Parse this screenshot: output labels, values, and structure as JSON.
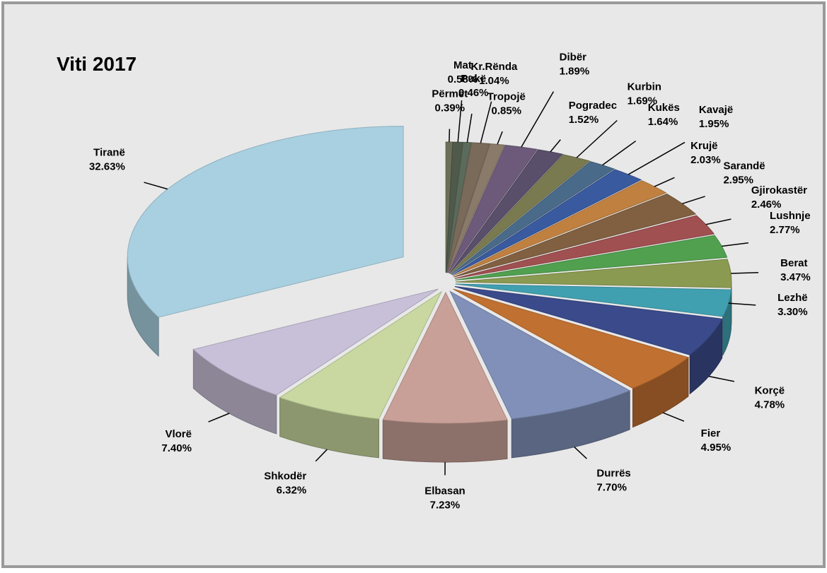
{
  "chart_data": {
    "type": "pie",
    "title": "Viti 2017",
    "categories": [
      "Përmet",
      "Mat",
      "Pukë",
      "Kr.Rënda",
      "Tropojë",
      "Dibër",
      "Pogradec",
      "Kurbin",
      "Kukës",
      "Kavajë",
      "Krujë",
      "Sarandë",
      "Gjirokastër",
      "Lushnje",
      "Berat",
      "Lezhë",
      "Korçë",
      "Fier",
      "Durrës",
      "Elbasan",
      "Shkodër",
      "Vlorë",
      "Tiranë"
    ],
    "values": [
      0.39,
      0.58,
      0.46,
      1.04,
      0.85,
      1.89,
      1.52,
      1.69,
      1.64,
      1.95,
      2.03,
      2.95,
      2.46,
      2.77,
      3.47,
      3.3,
      4.78,
      4.95,
      7.7,
      7.23,
      6.32,
      7.4,
      32.63
    ],
    "value_labels": [
      "0.39%",
      "0.58%",
      "0.46%",
      "1.04%",
      "0.85%",
      "1.89%",
      "1.52%",
      "1.69%",
      "1.64%",
      "1.95%",
      "2.03%",
      "2.95%",
      "2.46%",
      "2.77%",
      "3.47%",
      "3.30%",
      "4.78%",
      "4.95%",
      "7.70%",
      "7.23%",
      "6.32%",
      "7.40%",
      "32.63%"
    ],
    "colors": [
      "#6b6f5a",
      "#4f5a4a",
      "#5a6b5c",
      "#7a6a5a",
      "#8a7a6a",
      "#6d5a7a",
      "#5a4f6b",
      "#7a7a50",
      "#4a6a8a",
      "#3a5aa0",
      "#c08040",
      "#806040",
      "#a05050",
      "#50a050",
      "#8a9a50",
      "#40a0b0",
      "#3a4a8a",
      "#c07030",
      "#8090b8",
      "#c8a098",
      "#c8d8a0",
      "#c8c0d8",
      "#a8d0e0"
    ]
  }
}
